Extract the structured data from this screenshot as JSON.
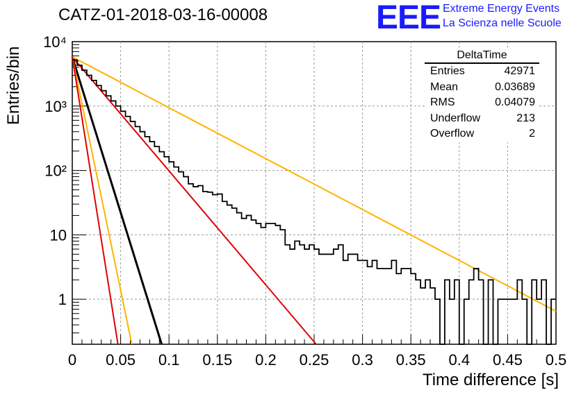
{
  "header": {
    "title": "CATZ-01-2018-03-16-00008",
    "logo_text": "EEE",
    "org_line1": "Extreme Energy Events",
    "org_line2": "La Scienza nelle Scuole"
  },
  "stats_box": {
    "title": "DeltaTime",
    "rows": [
      {
        "label": "Entries",
        "value": "42971"
      },
      {
        "label": "Mean",
        "value": "0.03689"
      },
      {
        "label": "RMS",
        "value": "0.04079"
      },
      {
        "label": "Underflow",
        "value": "213"
      },
      {
        "label": "Overflow",
        "value": "2"
      }
    ]
  },
  "chart_data": {
    "type": "histogram",
    "title": "CATZ-01-2018-03-16-00008",
    "xlabel": "Time difference [s]",
    "ylabel": "Entries/bin",
    "xlim": [
      0,
      0.5
    ],
    "ylim": [
      0.2,
      10000
    ],
    "y_scale": "log",
    "grid": true,
    "x_ticks": [
      "0",
      "0.05",
      "0.1",
      "0.15",
      "0.2",
      "0.25",
      "0.3",
      "0.35",
      "0.4",
      "0.45",
      "0.5"
    ],
    "y_ticks": [
      "1",
      "10",
      "10²",
      "10³",
      "10⁴"
    ],
    "bin_width": 0.005,
    "histogram": [
      5200,
      4300,
      3600,
      3000,
      2500,
      2080,
      1730,
      1440,
      1200,
      1000,
      830,
      690,
      575,
      480,
      400,
      335,
      280,
      235,
      195,
      163,
      136,
      113,
      95,
      80,
      62,
      56,
      58,
      47,
      46,
      42,
      43,
      33,
      29,
      26,
      22,
      18,
      20,
      17,
      15,
      13,
      15,
      15,
      14,
      12,
      7,
      6,
      8,
      7,
      6,
      7,
      6,
      5,
      5,
      5,
      6,
      7,
      4,
      5,
      5,
      4,
      4,
      3.2,
      4,
      3,
      3,
      3,
      4,
      2.5,
      3,
      3,
      2.5,
      2,
      1.5,
      2,
      1.5,
      1,
      0,
      2,
      1,
      2,
      0,
      1,
      2,
      3,
      2,
      0,
      2,
      0,
      1,
      1,
      1,
      1,
      2,
      1,
      0,
      2,
      1,
      2,
      0,
      1
    ],
    "fit_lines": [
      {
        "color": "#000000",
        "y0": 5800,
        "slope_per_s": -48.3
      },
      {
        "color": "#e00000",
        "y0": 5800,
        "slope_per_s": -17.7
      },
      {
        "color": "#ffb300",
        "y0": 5800,
        "slope_per_s": -7.9
      },
      {
        "color": "#ffb300",
        "y0": 5800,
        "slope_per_s": -72.5
      },
      {
        "color": "#e00000",
        "y0": 5800,
        "slope_per_s": -94.6
      }
    ]
  }
}
